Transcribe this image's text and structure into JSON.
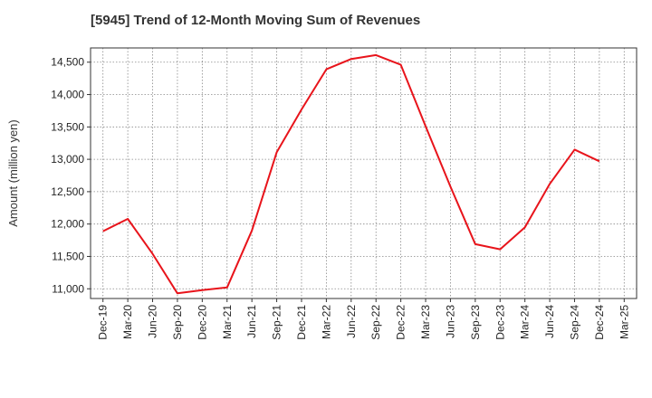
{
  "chart_data": {
    "type": "line",
    "title": "[5945]  Trend of 12-Month Moving Sum of Revenues",
    "xlabel": "",
    "ylabel": "Amount (million yen)",
    "categories": [
      "Dec-19",
      "Mar-20",
      "Jun-20",
      "Sep-20",
      "Dec-20",
      "Mar-21",
      "Jun-21",
      "Sep-21",
      "Dec-21",
      "Mar-22",
      "Jun-22",
      "Sep-22",
      "Dec-22",
      "Mar-23",
      "Jun-23",
      "Sep-23",
      "Dec-23",
      "Mar-24",
      "Jun-24",
      "Sep-24",
      "Dec-24",
      "Mar-25"
    ],
    "series": [
      {
        "color": "#e8141b",
        "values": [
          11890,
          12080,
          11540,
          10930,
          10980,
          11020,
          11900,
          13110,
          13770,
          14390,
          14550,
          14610,
          14460,
          13510,
          12580,
          11690,
          11610,
          11950,
          12620,
          13150,
          12970,
          null
        ]
      }
    ],
    "ylim": [
      10850,
      14720
    ],
    "yticks": [
      11000,
      11500,
      12000,
      12500,
      13000,
      13500,
      14000,
      14500
    ],
    "ytick_labels": [
      "11,000",
      "11,500",
      "12,000",
      "12,500",
      "13,000",
      "13,500",
      "14,000",
      "14,500"
    ],
    "grid": true,
    "grid_style": "dotted",
    "legend": "none"
  }
}
